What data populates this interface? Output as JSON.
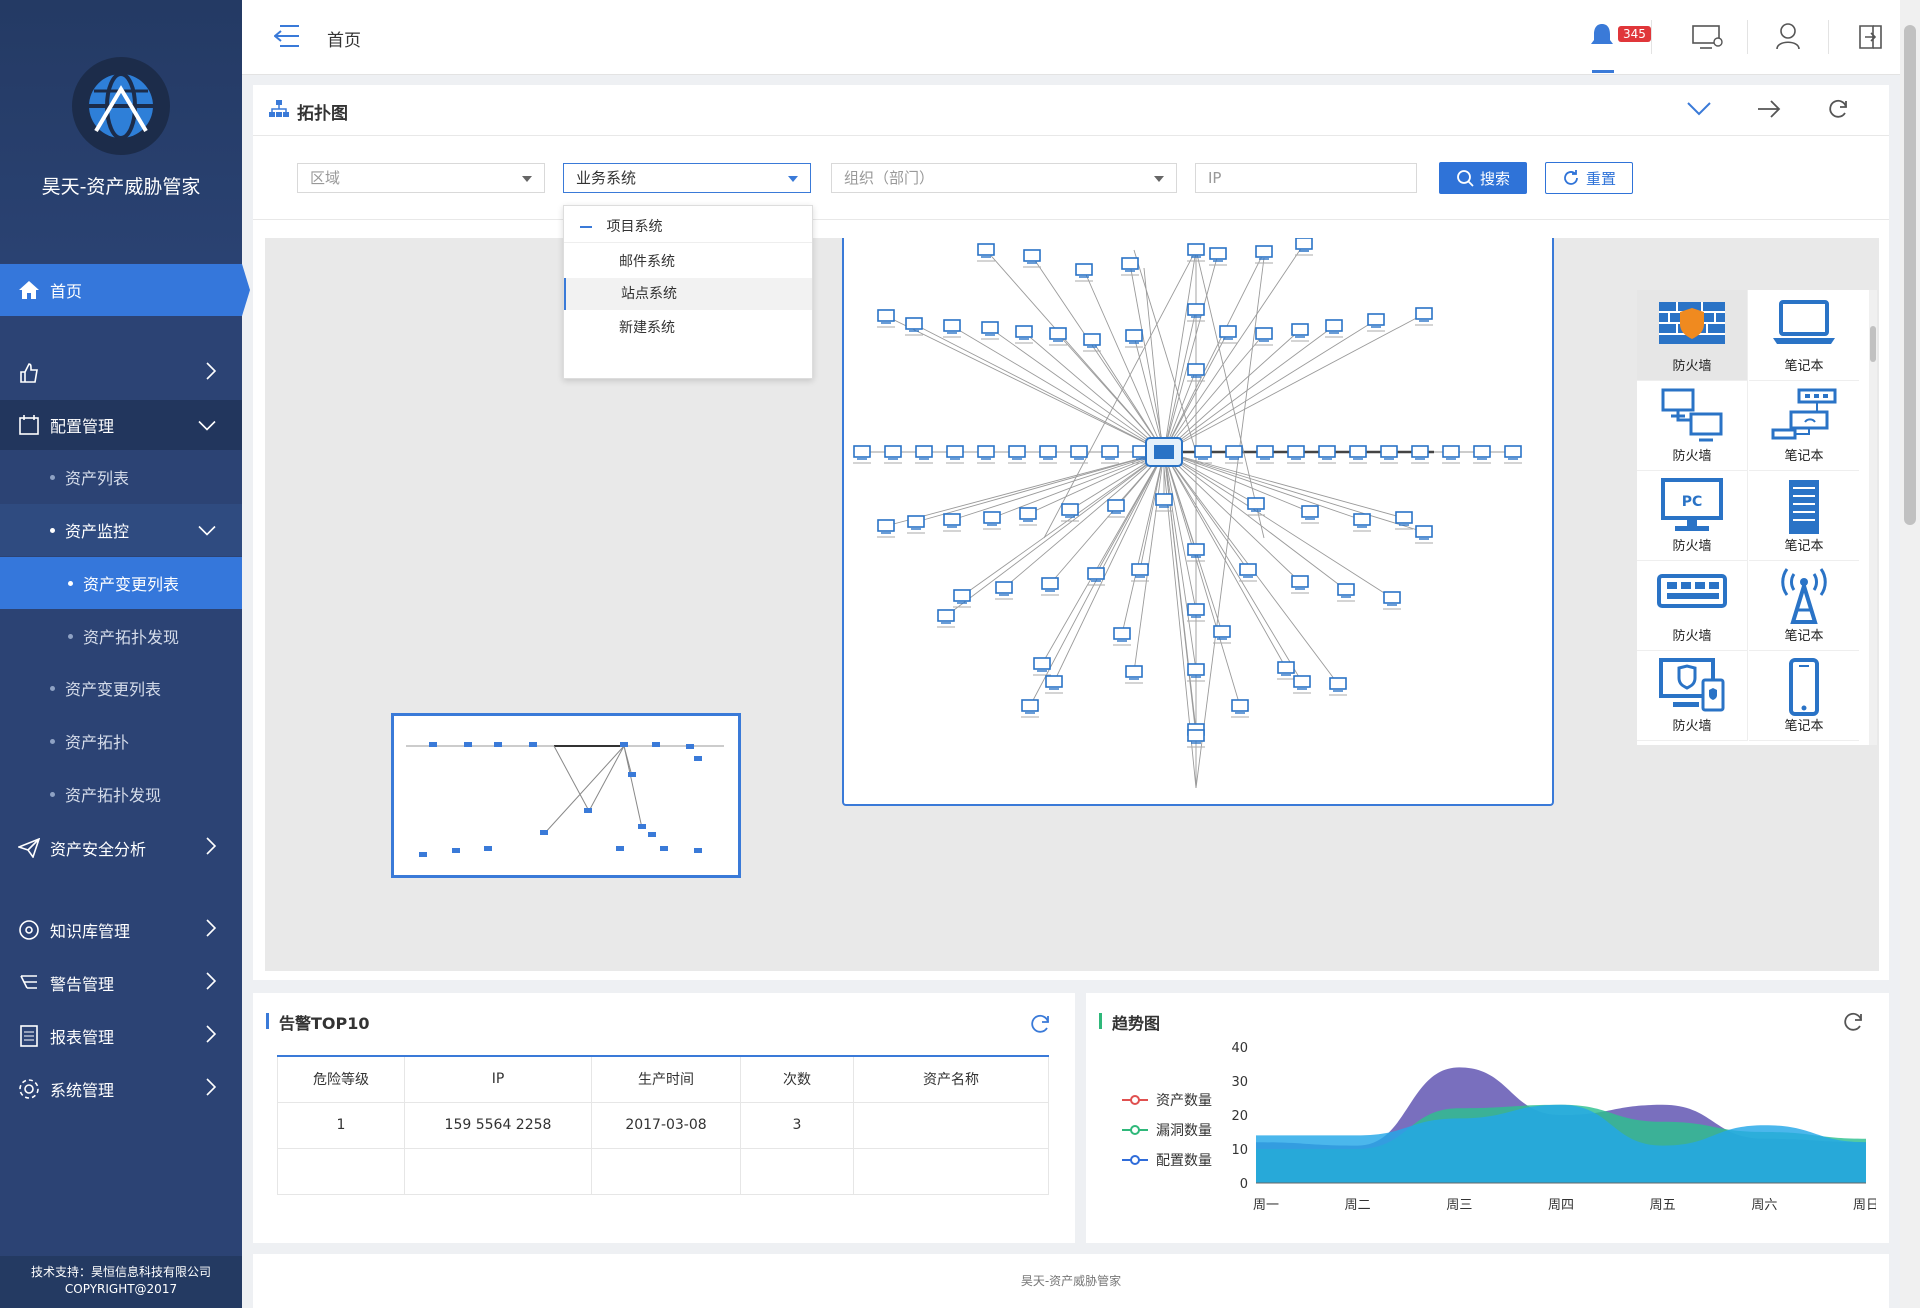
{
  "app": {
    "brand_name": "昊天-资产威胁管家",
    "support_line1": "技术支持：昊恒信息科技有限公司",
    "support_line2": "COPYRIGHT@2017"
  },
  "header": {
    "title": "首页",
    "notification_count": "345"
  },
  "sidebar": {
    "home": "首页",
    "config": "配置管理",
    "asset_list": "资产列表",
    "asset_monitor": "资产监控",
    "asset_change_list_active": "资产变更列表",
    "asset_topology_discovery_sub": "资产拓扑发现",
    "asset_change_list": "资产变更列表",
    "asset_topology": "资产拓扑",
    "asset_topology_discovery": "资产拓扑发现",
    "security_analysis": "资产安全分析",
    "knowledge": "知识库管理",
    "alert": "警告管理",
    "report": "报表管理",
    "system": "系统管理"
  },
  "topology": {
    "title": "拓扑图",
    "filters": {
      "region_placeholder": "区域",
      "business_value": "业务系统",
      "org_placeholder": "组织（部门）",
      "ip_placeholder": "IP",
      "search": "搜索",
      "reset": "重置"
    },
    "dropdown": {
      "group": "项目系统",
      "options": [
        "邮件系统",
        "站点系统",
        "新建系统"
      ],
      "hovered": "站点系统"
    },
    "palette": [
      {
        "label": "防火墙",
        "icon": "firewall-icon"
      },
      {
        "label": "笔记本",
        "icon": "laptop-icon"
      },
      {
        "label": "防火墙",
        "icon": "network-computers-icon"
      },
      {
        "label": "笔记本",
        "icon": "router-icon"
      },
      {
        "label": "防火墙",
        "icon": "pc-monitor-icon"
      },
      {
        "label": "笔记本",
        "icon": "server-icon"
      },
      {
        "label": "防火墙",
        "icon": "switch-icon"
      },
      {
        "label": "笔记本",
        "icon": "wireless-ap-icon"
      },
      {
        "label": "防火墙",
        "icon": "security-terminal-icon"
      },
      {
        "label": "笔记本",
        "icon": "mobile-phone-icon"
      }
    ]
  },
  "alerts": {
    "title": "告警TOP10",
    "columns": [
      "危险等级",
      "IP",
      "生产时间",
      "次数",
      "资产名称"
    ],
    "rows": [
      [
        "1",
        "159 5564  2258",
        "2017-03-08",
        "3",
        ""
      ],
      [
        "",
        "",
        "",
        "",
        ""
      ]
    ]
  },
  "trend": {
    "title": "趋势图",
    "legend": [
      {
        "name": "资产数量",
        "color": "#e0504f"
      },
      {
        "name": "漏洞数量",
        "color": "#2fb87a"
      },
      {
        "name": "配置数量",
        "color": "#2f6cd9"
      }
    ]
  },
  "chart_data": {
    "type": "area",
    "x": [
      "周一",
      "周二",
      "周三",
      "周四",
      "周五",
      "周六",
      "周日"
    ],
    "ylim": [
      0,
      40
    ],
    "yticks": [
      0,
      10,
      20,
      30,
      40
    ],
    "series": [
      {
        "name": "资产数量",
        "values": [
          12,
          11,
          34,
          20,
          23,
          13,
          12
        ],
        "color": "#5b4fb0"
      },
      {
        "name": "漏洞数量",
        "values": [
          10,
          10,
          22,
          23,
          18,
          15,
          13
        ],
        "color": "#2dbf8f"
      },
      {
        "name": "配置数量",
        "values": [
          14,
          14,
          19,
          23,
          11,
          17,
          12
        ],
        "color": "#23a7e8"
      }
    ]
  },
  "footer": {
    "text": "昊天-资产威胁管家"
  }
}
